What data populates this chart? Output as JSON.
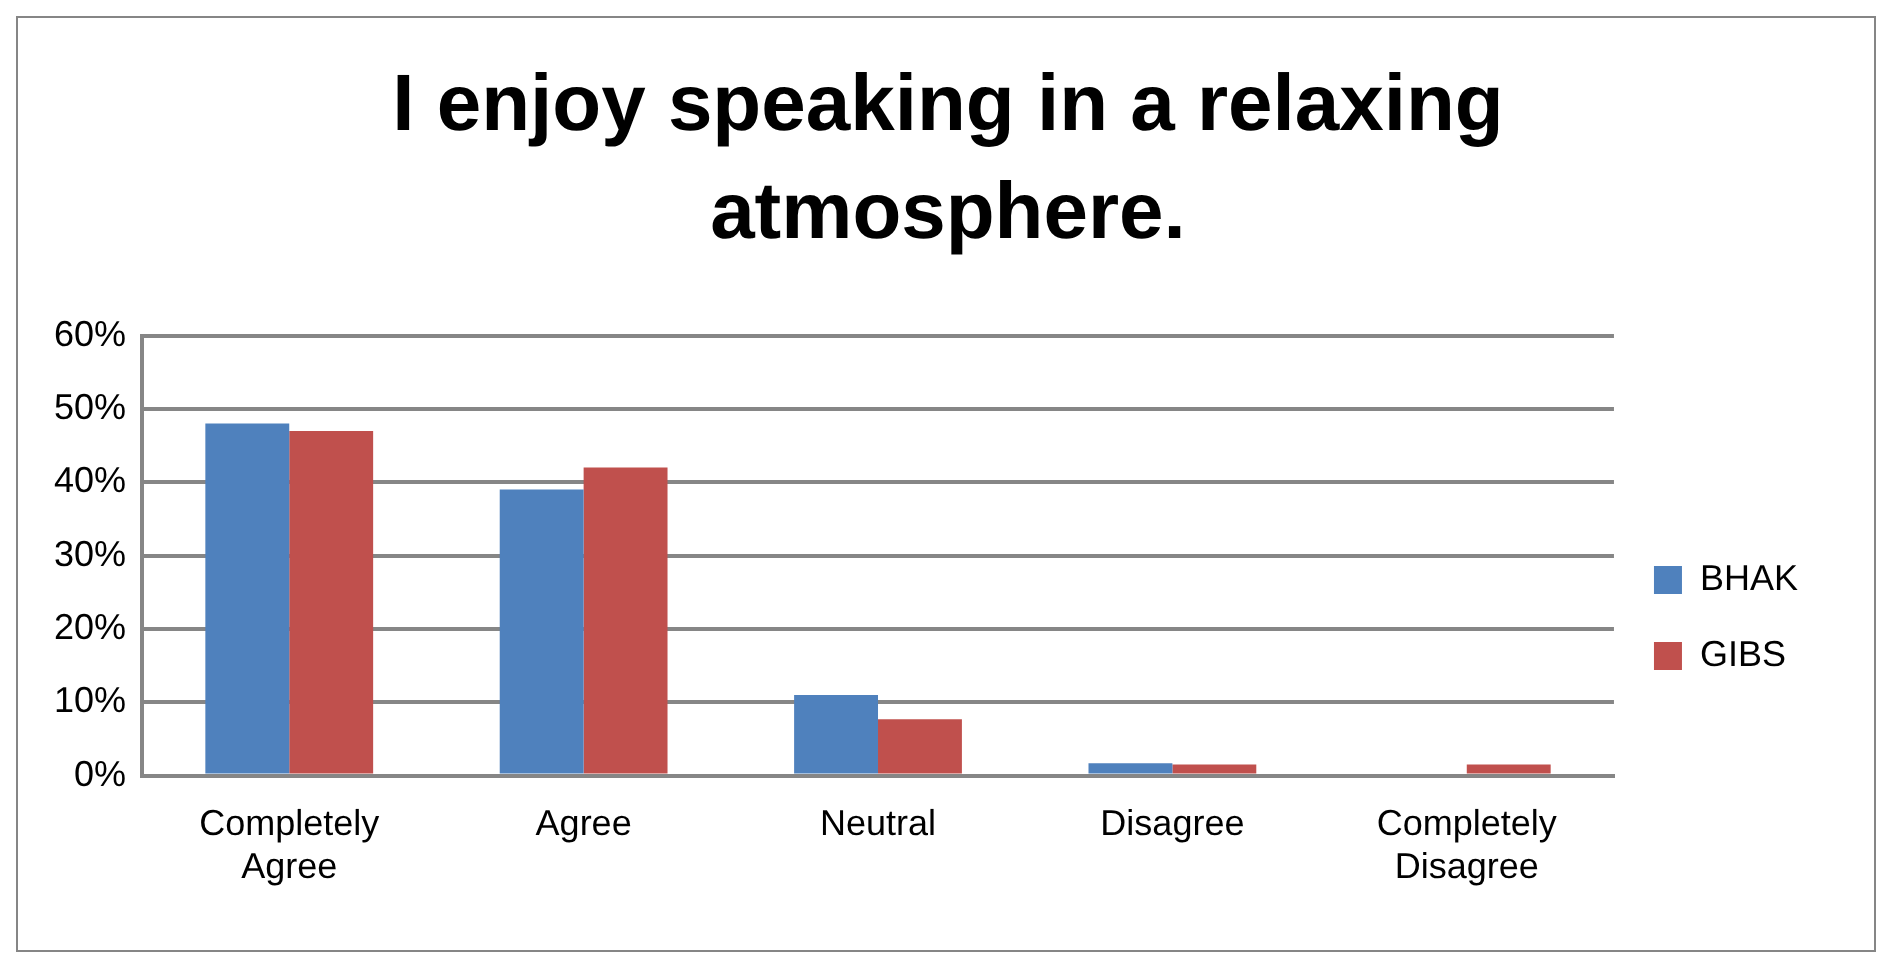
{
  "chart_data": {
    "type": "bar",
    "title": "I enjoy speaking in a relaxing atmosphere.",
    "categories": [
      "Completely Agree",
      "Agree",
      "Neutral",
      "Disagree",
      "Completely Disagree"
    ],
    "series": [
      {
        "name": "BHAK",
        "color": "#4f81bd",
        "values": [
          48,
          39,
          11,
          1.7,
          0
        ]
      },
      {
        "name": "GIBS",
        "color": "#c0504d",
        "values": [
          47,
          42,
          7.7,
          1.5,
          1.5
        ]
      }
    ],
    "ylim": [
      0,
      60
    ],
    "yticks": [
      {
        "value": 0,
        "label": "0%"
      },
      {
        "value": 10,
        "label": "10%"
      },
      {
        "value": 20,
        "label": "20%"
      },
      {
        "value": 30,
        "label": "30%"
      },
      {
        "value": 40,
        "label": "40%"
      },
      {
        "value": 50,
        "label": "50%"
      },
      {
        "value": 60,
        "label": "60%"
      }
    ],
    "grid": "y",
    "legend": "right"
  }
}
